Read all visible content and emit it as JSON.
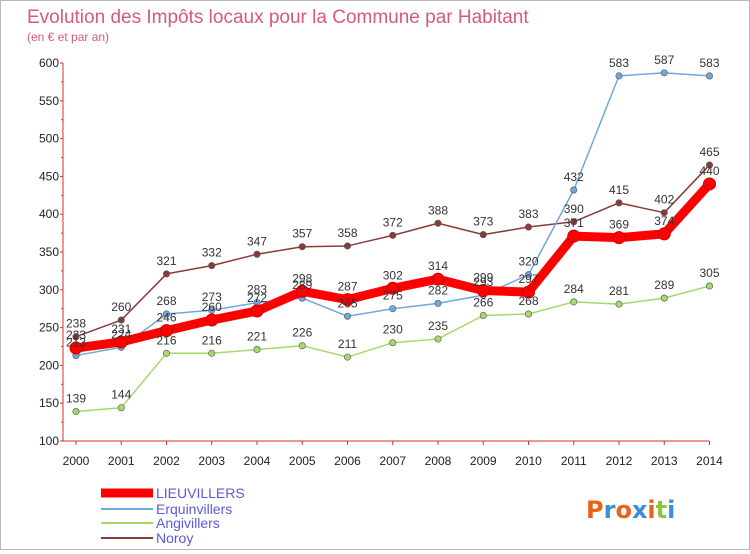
{
  "chart_data": {
    "type": "line",
    "title": "Evolution des Impôts locaux pour la Commune par Habitant",
    "subtitle": "(en € et par an)",
    "xlabel": "",
    "ylabel": "",
    "ylim": [
      100,
      600
    ],
    "yticks": [
      100,
      150,
      200,
      250,
      300,
      350,
      400,
      450,
      500,
      550,
      600
    ],
    "categories": [
      "2000",
      "2001",
      "2002",
      "2003",
      "2004",
      "2005",
      "2006",
      "2007",
      "2008",
      "2009",
      "2010",
      "2011",
      "2012",
      "2013",
      "2014"
    ],
    "grid": false,
    "legend_position": "bottom-left",
    "series": [
      {
        "name": "LIEUVILLERS",
        "color": "#ff0000",
        "values": [
          223,
          231,
          246,
          260,
          272,
          298,
          287,
          302,
          314,
          299,
          297,
          371,
          369,
          374,
          440
        ],
        "labels": [
          "223",
          "231",
          "246",
          "260",
          "272",
          "298",
          "287",
          "302",
          "314",
          "299",
          "297",
          "371",
          "369",
          "374",
          "440"
        ]
      },
      {
        "name": "Erquinvillers",
        "color": "#6fa8dc",
        "values": [
          213,
          224,
          268,
          273,
          283,
          289,
          265,
          275,
          282,
          293,
          320,
          432,
          583,
          587,
          583
        ],
        "labels": [
          "213",
          "224",
          "268",
          "273",
          "283",
          "289",
          "265",
          "275",
          "282",
          "293",
          "320",
          "432",
          "583",
          "587",
          "583"
        ]
      },
      {
        "name": "Angivillers",
        "color": "#a4d96c",
        "values": [
          139,
          144,
          216,
          216,
          221,
          226,
          211,
          230,
          235,
          266,
          268,
          284,
          281,
          289,
          305
        ],
        "labels": [
          "139",
          "144",
          "216",
          "216",
          "221",
          "226",
          "211",
          "230",
          "235",
          "266",
          "268",
          "284",
          "281",
          "289",
          "305"
        ]
      },
      {
        "name": "Noroy",
        "color": "#8b3a3a",
        "values": [
          238,
          260,
          321,
          332,
          347,
          357,
          358,
          372,
          388,
          373,
          383,
          390,
          415,
          402,
          465
        ],
        "labels": [
          "238",
          "260",
          "321",
          "332",
          "347",
          "357",
          "358",
          "372",
          "388",
          "373",
          "383",
          "390",
          "415",
          "402",
          "465"
        ]
      }
    ]
  },
  "logo": {
    "letters": [
      "P",
      "r",
      "o",
      "x",
      "i",
      "t",
      "i"
    ],
    "colors": [
      "#e8631a",
      "#3a8fd6",
      "#e8631a",
      "#3a8fd6",
      "#e8631a",
      "#8cc63f",
      "#3a8fd6"
    ]
  }
}
